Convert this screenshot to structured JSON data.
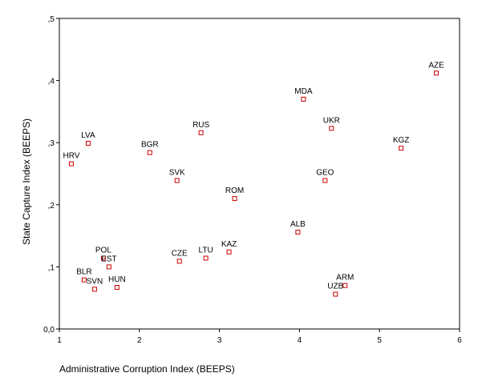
{
  "chart_data": {
    "type": "scatter",
    "title": "",
    "xlabel": "Administrative Corruption Index (BEEPS)",
    "ylabel": "State Capture Index (BEEPS)",
    "xlim": [
      1,
      6
    ],
    "ylim": [
      0,
      0.5
    ],
    "x_ticks": [
      {
        "value": 1,
        "label": "1"
      },
      {
        "value": 2,
        "label": "2"
      },
      {
        "value": 3,
        "label": "3"
      },
      {
        "value": 4,
        "label": "4"
      },
      {
        "value": 5,
        "label": "5"
      },
      {
        "value": 6,
        "label": "6"
      }
    ],
    "y_ticks": [
      {
        "value": 0,
        "label": "0,0"
      },
      {
        "value": 0.1,
        "label": ",1"
      },
      {
        "value": 0.2,
        "label": ",2"
      },
      {
        "value": 0.3,
        "label": ",3"
      },
      {
        "value": 0.4,
        "label": ",4"
      },
      {
        "value": 0.5,
        "label": ",5"
      }
    ],
    "grid": false,
    "marker_color": "#cc0000",
    "points": [
      {
        "label": "AZE",
        "x": 5.71,
        "y": 0.412
      },
      {
        "label": "MDA",
        "x": 4.05,
        "y": 0.37
      },
      {
        "label": "UKR",
        "x": 4.4,
        "y": 0.323
      },
      {
        "label": "KGZ",
        "x": 5.27,
        "y": 0.291
      },
      {
        "label": "RUS",
        "x": 2.77,
        "y": 0.316
      },
      {
        "label": "BGR",
        "x": 2.13,
        "y": 0.284
      },
      {
        "label": "LVA",
        "x": 1.36,
        "y": 0.299
      },
      {
        "label": "HRV",
        "x": 1.15,
        "y": 0.266
      },
      {
        "label": "SVK",
        "x": 2.47,
        "y": 0.239
      },
      {
        "label": "GEO",
        "x": 4.32,
        "y": 0.239
      },
      {
        "label": "ROM",
        "x": 3.19,
        "y": 0.21
      },
      {
        "label": "ALB",
        "x": 3.98,
        "y": 0.156
      },
      {
        "label": "KAZ",
        "x": 3.12,
        "y": 0.124
      },
      {
        "label": "LTU",
        "x": 2.83,
        "y": 0.114
      },
      {
        "label": "CZE",
        "x": 2.5,
        "y": 0.109
      },
      {
        "label": "POL",
        "x": 1.55,
        "y": 0.114
      },
      {
        "label": "EST",
        "x": 1.62,
        "y": 0.1
      },
      {
        "label": "BLR",
        "x": 1.31,
        "y": 0.079
      },
      {
        "label": "SVN",
        "x": 1.44,
        "y": 0.064
      },
      {
        "label": "HUN",
        "x": 1.72,
        "y": 0.067
      },
      {
        "label": "ARM",
        "x": 4.57,
        "y": 0.07
      },
      {
        "label": "UZB",
        "x": 4.45,
        "y": 0.056
      }
    ]
  }
}
